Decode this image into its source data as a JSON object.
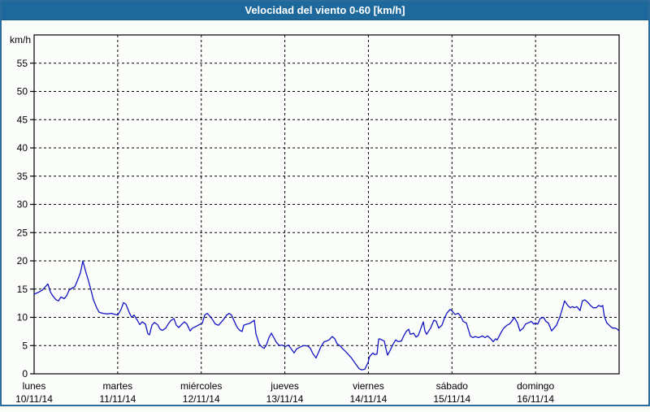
{
  "window": {
    "title": "Velocidad del viento 0-60 [km/h]"
  },
  "colors": {
    "title_bar": "#1e699c",
    "frame_border": "#2a6d9b",
    "background": "#fbfdfa",
    "plot_border": "#000000",
    "grid": "#000000",
    "line": "#1414c4"
  },
  "chart_data": {
    "type": "line",
    "title": "Velocidad del viento 0-60 [km/h]",
    "ylabel": "km/h",
    "ylim": [
      0,
      60
    ],
    "yticks": [
      0,
      5,
      10,
      15,
      20,
      25,
      30,
      35,
      40,
      45,
      50,
      55
    ],
    "grid": "dashed",
    "legend_position": "none",
    "x_unit": "days",
    "x_range_days": [
      0,
      7
    ],
    "days": [
      {
        "name": "lunes",
        "date": "10/11/14"
      },
      {
        "name": "martes",
        "date": "11/11/14"
      },
      {
        "name": "miércoles",
        "date": "12/11/14"
      },
      {
        "name": "jueves",
        "date": "13/11/14"
      },
      {
        "name": "viernes",
        "date": "14/11/14"
      },
      {
        "name": "sábado",
        "date": "15/11/14"
      },
      {
        "name": "domingo",
        "date": "16/11/14"
      }
    ],
    "series": [
      {
        "name": "velocidad-del-viento",
        "color": "#1414c4",
        "t_days": [
          0.0,
          0.049,
          0.097,
          0.146,
          0.165,
          0.194,
          0.224,
          0.263,
          0.292,
          0.321,
          0.36,
          0.389,
          0.418,
          0.457,
          0.486,
          0.515,
          0.554,
          0.583,
          0.613,
          0.651,
          0.681,
          0.71,
          0.749,
          0.778,
          0.826,
          0.875,
          0.924,
          0.972,
          1.001,
          1.04,
          1.069,
          1.099,
          1.137,
          1.167,
          1.196,
          1.235,
          1.264,
          1.293,
          1.332,
          1.361,
          1.381,
          1.41,
          1.439,
          1.478,
          1.507,
          1.536,
          1.575,
          1.604,
          1.633,
          1.672,
          1.701,
          1.731,
          1.769,
          1.799,
          1.828,
          1.867,
          1.896,
          1.925,
          1.964,
          2.013,
          2.042,
          2.071,
          2.11,
          2.139,
          2.168,
          2.207,
          2.236,
          2.265,
          2.304,
          2.333,
          2.362,
          2.401,
          2.431,
          2.46,
          2.489,
          2.508,
          2.547,
          2.576,
          2.606,
          2.635,
          2.654,
          2.693,
          2.722,
          2.751,
          2.78,
          2.81,
          2.839,
          2.868,
          2.897,
          2.936,
          2.965,
          3.004,
          3.043,
          3.082,
          3.111,
          3.14,
          3.179,
          3.208,
          3.237,
          3.276,
          3.306,
          3.335,
          3.374,
          3.403,
          3.432,
          3.471,
          3.5,
          3.529,
          3.568,
          3.597,
          3.626,
          3.665,
          3.694,
          3.724,
          3.762,
          3.792,
          3.821,
          3.86,
          3.889,
          3.918,
          3.957,
          3.986,
          3.996,
          4.015,
          4.054,
          4.074,
          4.103,
          4.122,
          4.132,
          4.161,
          4.19,
          4.209,
          4.229,
          4.258,
          4.297,
          4.326,
          4.355,
          4.394,
          4.423,
          4.452,
          4.482,
          4.501,
          4.54,
          4.569,
          4.598,
          4.637,
          4.657,
          4.676,
          4.696,
          4.744,
          4.783,
          4.812,
          4.841,
          4.88,
          4.909,
          4.938,
          4.977,
          4.997,
          5.036,
          5.075,
          5.104,
          5.133,
          5.172,
          5.191,
          5.22,
          5.25,
          5.279,
          5.318,
          5.366,
          5.396,
          5.425,
          5.464,
          5.493,
          5.522,
          5.541,
          5.59,
          5.619,
          5.658,
          5.687,
          5.716,
          5.745,
          5.784,
          5.813,
          5.852,
          5.881,
          5.91,
          5.949,
          5.978,
          5.998,
          6.027,
          6.056,
          6.095,
          6.124,
          6.153,
          6.192,
          6.221,
          6.25,
          6.289,
          6.318,
          6.347,
          6.386,
          6.415,
          6.444,
          6.464,
          6.493,
          6.532,
          6.561,
          6.59,
          6.629,
          6.658,
          6.687,
          6.726,
          6.755,
          6.784,
          6.804,
          6.823,
          6.852,
          6.881,
          6.92,
          6.95,
          6.979,
          6.998
        ],
        "values_kmh": [
          14.1,
          14.4,
          14.8,
          15.6,
          15.9,
          14.5,
          13.8,
          13.1,
          12.9,
          13.6,
          13.3,
          13.8,
          14.8,
          15.2,
          15.4,
          16.4,
          17.9,
          20.0,
          18.3,
          16.4,
          14.8,
          13.1,
          11.7,
          10.9,
          10.7,
          10.6,
          10.7,
          10.5,
          10.4,
          11.4,
          12.6,
          12.3,
          10.9,
          10.0,
          10.4,
          9.5,
          8.7,
          9.2,
          8.8,
          7.1,
          6.9,
          8.6,
          9.1,
          8.7,
          7.9,
          7.7,
          8.1,
          8.8,
          9.4,
          9.8,
          8.6,
          8.2,
          8.8,
          9.2,
          8.8,
          7.6,
          8.1,
          8.3,
          8.6,
          9.0,
          10.4,
          10.7,
          10.1,
          9.5,
          8.8,
          8.6,
          9.1,
          9.6,
          10.4,
          10.7,
          10.4,
          9.1,
          8.2,
          7.7,
          7.5,
          8.6,
          8.8,
          8.9,
          9.2,
          9.5,
          7.1,
          5.3,
          4.8,
          4.5,
          5.1,
          6.4,
          7.2,
          6.4,
          5.6,
          5.0,
          5.1,
          4.8,
          5.1,
          4.3,
          3.7,
          4.4,
          4.7,
          4.9,
          5.0,
          4.9,
          4.5,
          3.6,
          2.8,
          3.8,
          4.8,
          5.7,
          5.8,
          6.0,
          6.6,
          6.2,
          5.3,
          4.9,
          4.4,
          4.0,
          3.4,
          2.9,
          2.3,
          1.5,
          0.9,
          0.7,
          0.8,
          1.7,
          2.0,
          3.1,
          3.7,
          3.4,
          3.5,
          6.1,
          6.2,
          6.0,
          5.8,
          4.5,
          3.3,
          4.1,
          5.3,
          6.0,
          5.7,
          5.8,
          6.7,
          7.5,
          7.9,
          7.0,
          7.2,
          6.5,
          6.8,
          8.4,
          9.2,
          7.6,
          7.0,
          8.1,
          9.5,
          9.3,
          8.1,
          8.6,
          9.8,
          10.7,
          11.4,
          11.2,
          10.5,
          10.7,
          10.2,
          9.3,
          9.0,
          8.1,
          6.7,
          6.4,
          6.6,
          6.4,
          6.7,
          6.4,
          6.7,
          6.2,
          5.7,
          6.2,
          6.0,
          7.4,
          8.1,
          8.6,
          8.8,
          9.3,
          10.0,
          9.0,
          7.6,
          8.1,
          8.8,
          9.0,
          9.3,
          8.8,
          9.0,
          8.8,
          9.8,
          10.0,
          9.3,
          9.0,
          7.6,
          8.1,
          8.6,
          10.0,
          11.4,
          12.9,
          12.1,
          11.7,
          11.9,
          11.7,
          11.9,
          11.2,
          12.9,
          13.1,
          12.6,
          12.1,
          11.7,
          11.7,
          12.1,
          11.9,
          12.1,
          10.2,
          9.0,
          8.6,
          8.1,
          8.1,
          7.9,
          7.6
        ]
      }
    ]
  }
}
